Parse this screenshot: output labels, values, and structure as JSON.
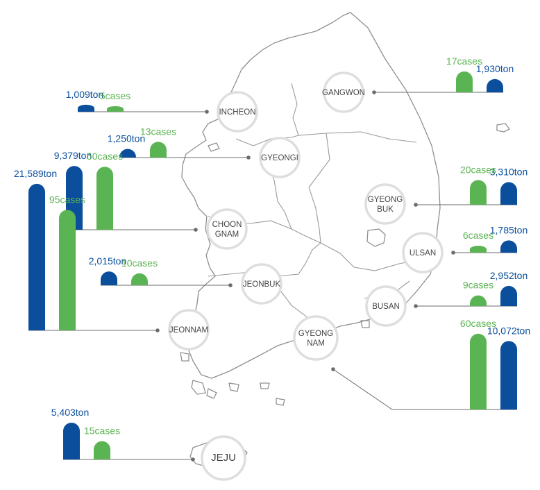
{
  "chart_data": {
    "type": "bar",
    "colors": {
      "ton": "#0b4f9c",
      "cases": "#5bb453"
    },
    "regions": [
      {
        "name": "INCHEON",
        "ton_label": "1,009ton",
        "ton": 1009,
        "cases_label": "5cases",
        "cases": 5
      },
      {
        "name": "GYEONGI",
        "ton_label": "1,250ton",
        "ton": 1250,
        "cases_label": "13cases",
        "cases": 13
      },
      {
        "name": "CHOON GNAM",
        "ton_label": "9,379ton",
        "ton": 9379,
        "cases_label": "50cases",
        "cases": 50
      },
      {
        "name": "JEONBUK",
        "ton_label": "2,015ton",
        "ton": 2015,
        "cases_label": "10cases",
        "cases": 10
      },
      {
        "name": "JEONNAM",
        "ton_label": "21,589ton",
        "ton": 21589,
        "cases_label": "95cases",
        "cases": 95
      },
      {
        "name": "JEJU",
        "ton_label": "5,403ton",
        "ton": 5403,
        "cases_label": "15cases",
        "cases": 15
      },
      {
        "name": "GANGWON",
        "ton_label": "1,930ton",
        "ton": 1930,
        "cases_label": "17cases",
        "cases": 17
      },
      {
        "name": "GYEONG BUK",
        "ton_label": "3,310ton",
        "ton": 3310,
        "cases_label": "20cases",
        "cases": 20
      },
      {
        "name": "ULSAN",
        "ton_label": "1,785ton",
        "ton": 1785,
        "cases_label": "6cases",
        "cases": 6
      },
      {
        "name": "BUSAN",
        "ton_label": "2,952ton",
        "ton": 2952,
        "cases_label": "9cases",
        "cases": 9
      },
      {
        "name": "GYEONG NAM",
        "ton_label": "10,072ton",
        "ton": 10072,
        "cases_label": "60cases",
        "cases": 60
      }
    ]
  }
}
